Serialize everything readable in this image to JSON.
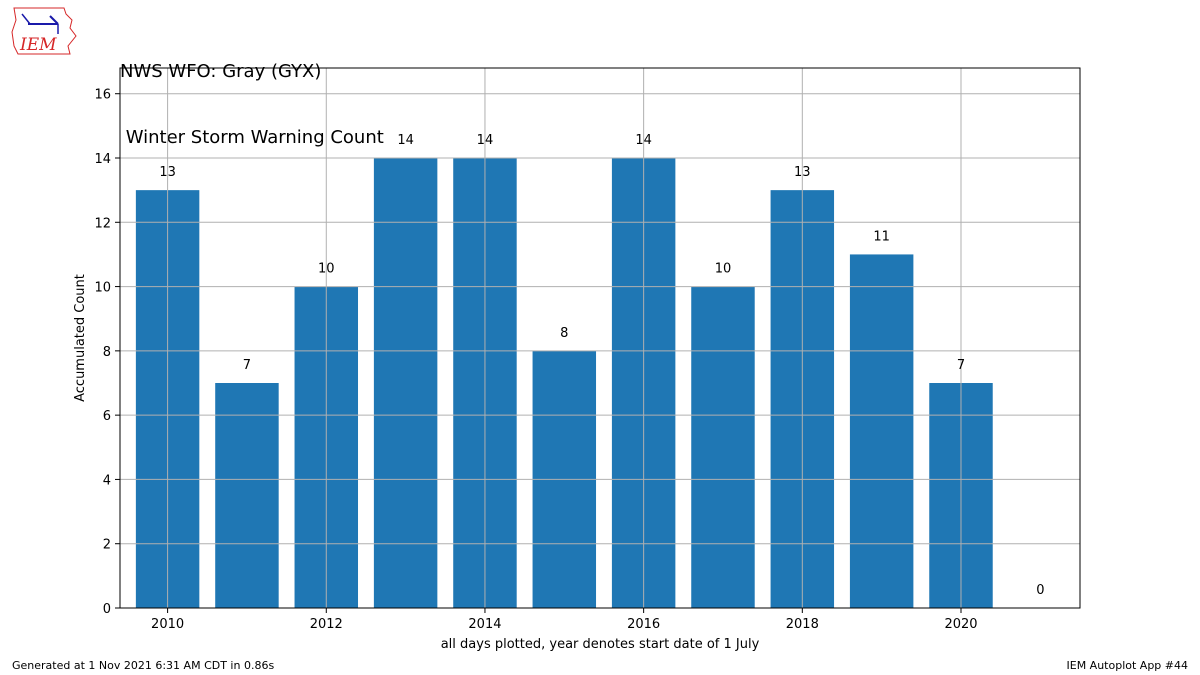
{
  "header": {
    "title_line1": "NWS WFO: Gray (GYX)",
    "title_line2": " Winter Storm Warning Count",
    "logo_text": "IEM"
  },
  "footer": {
    "generated": "Generated at 1 Nov 2021 6:31 AM CDT in 0.86s",
    "app": "IEM Autoplot App #44"
  },
  "colors": {
    "bar": "#1f77b4",
    "grid": "#b0b0b0",
    "logo_red": "#d62728",
    "logo_blue": "#1a1aaa"
  },
  "chart_data": {
    "type": "bar",
    "title": "NWS WFO: Gray (GYX)\n Winter Storm Warning Count",
    "xlabel": "all days plotted, year denotes start date of 1 July",
    "ylabel": "Accumulated Count",
    "categories": [
      2010,
      2011,
      2012,
      2013,
      2014,
      2015,
      2016,
      2017,
      2018,
      2019,
      2020,
      2021
    ],
    "values": [
      13,
      7,
      10,
      14,
      14,
      8,
      14,
      10,
      13,
      11,
      7,
      0
    ],
    "data_labels": [
      "13",
      "7",
      "10",
      "14",
      "14",
      "8",
      "14",
      "10",
      "13",
      "11",
      "7",
      "0"
    ],
    "xlim": [
      2009.4,
      2021.5
    ],
    "ylim": [
      0,
      16.8
    ],
    "xticks": [
      2010,
      2012,
      2014,
      2016,
      2018,
      2020
    ],
    "xtick_labels": [
      "2010",
      "2012",
      "2014",
      "2016",
      "2018",
      "2020"
    ],
    "yticks": [
      0,
      2,
      4,
      6,
      8,
      10,
      12,
      14,
      16
    ],
    "ytick_labels": [
      "0",
      "2",
      "4",
      "6",
      "8",
      "10",
      "12",
      "14",
      "16"
    ],
    "grid": true,
    "legend": false
  }
}
